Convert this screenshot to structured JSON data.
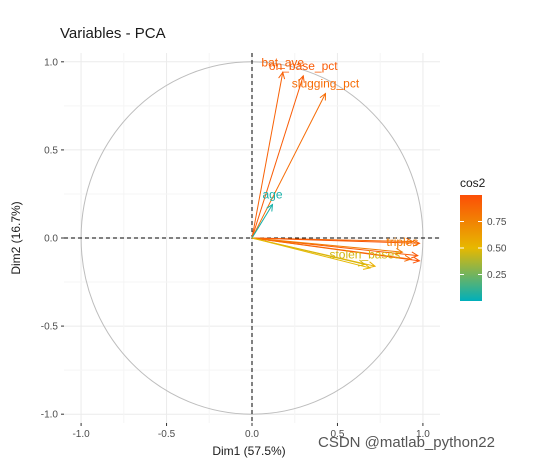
{
  "chart_data": {
    "type": "scatter",
    "title": "Variables - PCA",
    "xlabel": "Dim1 (57.5%)",
    "ylabel": "Dim2 (16.7%)",
    "xlim": [
      -1.1,
      1.1
    ],
    "ylim": [
      -1.05,
      1.05
    ],
    "x_ticks": [
      "-1.0",
      "-0.5",
      "0.0",
      "0.5",
      "1.0"
    ],
    "y_ticks": [
      "-1.0",
      "-0.5",
      "0.0",
      "0.5",
      "1.0"
    ],
    "grid": true,
    "legend": {
      "title": "cos2",
      "placement": "right",
      "ticks": [
        "0.25",
        "0.50",
        "0.75"
      ],
      "colors": [
        "#00AFBB",
        "#E7B800",
        "#FC4E07"
      ]
    },
    "variables": [
      {
        "name": "bat_ave",
        "x": 0.18,
        "y": 0.94,
        "cos2": 0.91,
        "label": "bat_ave"
      },
      {
        "name": "on_base_pct",
        "x": 0.3,
        "y": 0.92,
        "cos2": 0.94,
        "label": "on_base_pct"
      },
      {
        "name": "slugging_pct",
        "x": 0.43,
        "y": 0.82,
        "cos2": 0.86,
        "label": "slugging_pct"
      },
      {
        "name": "age",
        "x": 0.12,
        "y": 0.19,
        "cos2": 0.05,
        "label": "age"
      },
      {
        "name": "var_e1",
        "x": 0.94,
        "y": -0.02,
        "cos2": 0.88,
        "label": ""
      },
      {
        "name": "var_e2",
        "x": 0.98,
        "y": -0.03,
        "cos2": 0.96,
        "label": ""
      },
      {
        "name": "var_e3",
        "x": 0.97,
        "y": -0.1,
        "cos2": 0.95,
        "label": ""
      },
      {
        "name": "var_e4",
        "x": 0.98,
        "y": -0.13,
        "cos2": 0.97,
        "label": ""
      },
      {
        "name": "triples",
        "x": 0.88,
        "y": -0.08,
        "cos2": 0.78,
        "label": "triples"
      },
      {
        "name": "var_e5",
        "x": 0.93,
        "y": -0.12,
        "cos2": 0.87,
        "label": ""
      },
      {
        "name": "var_e6",
        "x": 0.72,
        "y": -0.16,
        "cos2": 0.54,
        "label": ""
      },
      {
        "name": "stolen_bases",
        "x": 0.66,
        "y": -0.15,
        "cos2": 0.46,
        "label": "stolen_bases"
      },
      {
        "name": "var_e7",
        "x": 0.69,
        "y": -0.17,
        "cos2": 0.5,
        "label": ""
      }
    ]
  },
  "watermark": "CSDN @matlab_python22"
}
